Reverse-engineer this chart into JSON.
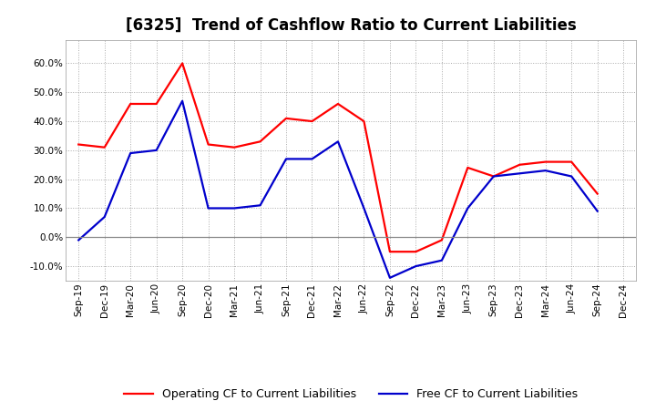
{
  "title": "[6325]  Trend of Cashflow Ratio to Current Liabilities",
  "x_labels": [
    "Sep-19",
    "Dec-19",
    "Mar-20",
    "Jun-20",
    "Sep-20",
    "Dec-20",
    "Mar-21",
    "Jun-21",
    "Sep-21",
    "Dec-21",
    "Mar-22",
    "Jun-22",
    "Sep-22",
    "Dec-22",
    "Mar-23",
    "Jun-23",
    "Sep-23",
    "Dec-23",
    "Mar-24",
    "Jun-24",
    "Sep-24",
    "Dec-24"
  ],
  "operating_cf": [
    0.32,
    0.31,
    0.46,
    0.46,
    0.6,
    0.32,
    0.31,
    0.33,
    0.41,
    0.4,
    0.46,
    0.4,
    -0.05,
    -0.05,
    -0.01,
    0.24,
    0.21,
    0.25,
    0.26,
    0.26,
    0.15,
    null
  ],
  "free_cf": [
    -0.01,
    0.07,
    0.29,
    0.3,
    0.47,
    0.1,
    0.1,
    0.11,
    0.27,
    0.27,
    0.33,
    0.1,
    -0.14,
    -0.1,
    -0.08,
    0.1,
    0.21,
    0.22,
    0.23,
    0.21,
    0.09,
    null
  ],
  "operating_color": "#FF0000",
  "free_color": "#0000CC",
  "ylim": [
    -0.15,
    0.68
  ],
  "yticks": [
    -0.1,
    0.0,
    0.1,
    0.2,
    0.3,
    0.4,
    0.5,
    0.6
  ],
  "bg_color": "#FFFFFF",
  "plot_bg_color": "#FFFFFF",
  "grid_color": "#AAAAAA",
  "legend_op": "Operating CF to Current Liabilities",
  "legend_free": "Free CF to Current Liabilities",
  "title_fontsize": 12,
  "axis_fontsize": 7.5,
  "legend_fontsize": 9,
  "line_width": 1.6
}
